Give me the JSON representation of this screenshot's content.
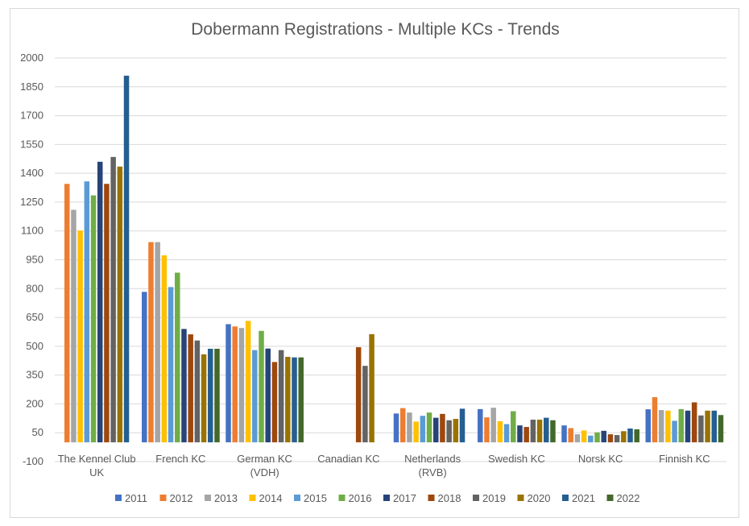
{
  "chart_data": {
    "type": "bar",
    "title": "Dobermann Registrations - Multiple KCs - Trends",
    "xlabel": "",
    "ylabel": "",
    "ylim": [
      -100,
      2000
    ],
    "yticks": [
      -100,
      50,
      200,
      350,
      500,
      650,
      800,
      950,
      1100,
      1250,
      1400,
      1550,
      1700,
      1850,
      2000
    ],
    "grid": true,
    "legend_position": "bottom",
    "categories": [
      [
        "The Kennel Club",
        "UK"
      ],
      [
        "French KC"
      ],
      [
        "German KC",
        "(VDH)"
      ],
      [
        "Canadian KC"
      ],
      [
        "Netherlands",
        "(RVB)"
      ],
      [
        "Swedish KC"
      ],
      [
        "Norsk KC"
      ],
      [
        "Finnish KC"
      ]
    ],
    "series": [
      {
        "name": "2011",
        "color": "#4472c4",
        "values": [
          null,
          783,
          615,
          null,
          150,
          173,
          88,
          172
        ]
      },
      {
        "name": "2012",
        "color": "#ed7d31",
        "values": [
          1345,
          1042,
          603,
          null,
          178,
          130,
          74,
          235
        ]
      },
      {
        "name": "2013",
        "color": "#a5a5a5",
        "values": [
          1210,
          1042,
          595,
          null,
          155,
          180,
          42,
          168
        ]
      },
      {
        "name": "2014",
        "color": "#ffc000",
        "values": [
          1102,
          973,
          632,
          null,
          108,
          110,
          62,
          165
        ]
      },
      {
        "name": "2015",
        "color": "#5b9bd5",
        "values": [
          1358,
          808,
          480,
          null,
          138,
          95,
          35,
          112
        ]
      },
      {
        "name": "2016",
        "color": "#70ad47",
        "values": [
          1285,
          883,
          580,
          null,
          155,
          162,
          52,
          173
        ]
      },
      {
        "name": "2017",
        "color": "#264478",
        "values": [
          1460,
          590,
          488,
          null,
          128,
          88,
          60,
          165
        ]
      },
      {
        "name": "2018",
        "color": "#9e480e",
        "values": [
          1345,
          562,
          418,
          495,
          148,
          80,
          42,
          208
        ]
      },
      {
        "name": "2019",
        "color": "#636363",
        "values": [
          1485,
          530,
          480,
          398,
          115,
          118,
          38,
          140
        ]
      },
      {
        "name": "2020",
        "color": "#997300",
        "values": [
          1435,
          458,
          445,
          563,
          122,
          118,
          58,
          165
        ]
      },
      {
        "name": "2021",
        "color": "#255e91",
        "values": [
          1908,
          487,
          442,
          null,
          175,
          128,
          72,
          165
        ]
      },
      {
        "name": "2022",
        "color": "#43682b",
        "values": [
          null,
          487,
          442,
          null,
          null,
          115,
          68,
          142
        ]
      }
    ]
  }
}
